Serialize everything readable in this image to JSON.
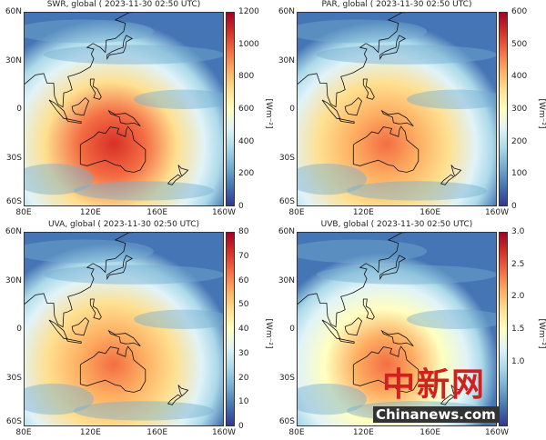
{
  "colorscale": [
    "#313695",
    "#4575b4",
    "#74add1",
    "#abd9e9",
    "#e0f3f8",
    "#ffffbf",
    "#fee090",
    "#fdae61",
    "#f46d43",
    "#d73027",
    "#a50026"
  ],
  "x_ticks": [
    "80E",
    "120E",
    "160E",
    "160W"
  ],
  "y_ticks": [
    "60N",
    "30N",
    "0",
    "30S",
    "60S"
  ],
  "unit_label": "[Wm⁻²]",
  "panels": [
    {
      "title": "SWR, global ( 2023-11-30 02:50 UTC)",
      "cbar_ticks": [
        "0",
        "200",
        "400",
        "600",
        "800",
        "1000",
        "1200"
      ],
      "warmth": 0.85
    },
    {
      "title": "PAR, global ( 2023-11-30 02:50 UTC)",
      "cbar_ticks": [
        "0",
        "100",
        "200",
        "300",
        "400",
        "500",
        "600"
      ],
      "warmth": 0.8
    },
    {
      "title": "UVA, global ( 2023-11-30 02:50 UTC)",
      "cbar_ticks": [
        "0",
        "10",
        "20",
        "30",
        "40",
        "50",
        "60",
        "70",
        "80"
      ],
      "warmth": 0.75
    },
    {
      "title": "UVB, global ( 2023-11-30 02:50 UTC)",
      "cbar_ticks": [
        "1.0",
        "1.5",
        "2.0",
        "2.5",
        "3.0"
      ],
      "cbar_tick_values": [
        1.0,
        1.5,
        2.0,
        2.5,
        3.0
      ],
      "cbar_range": [
        0,
        3.0
      ],
      "warmth": 0.55
    }
  ],
  "watermark": {
    "logo": "中新网",
    "site": "Chinanews.com"
  }
}
